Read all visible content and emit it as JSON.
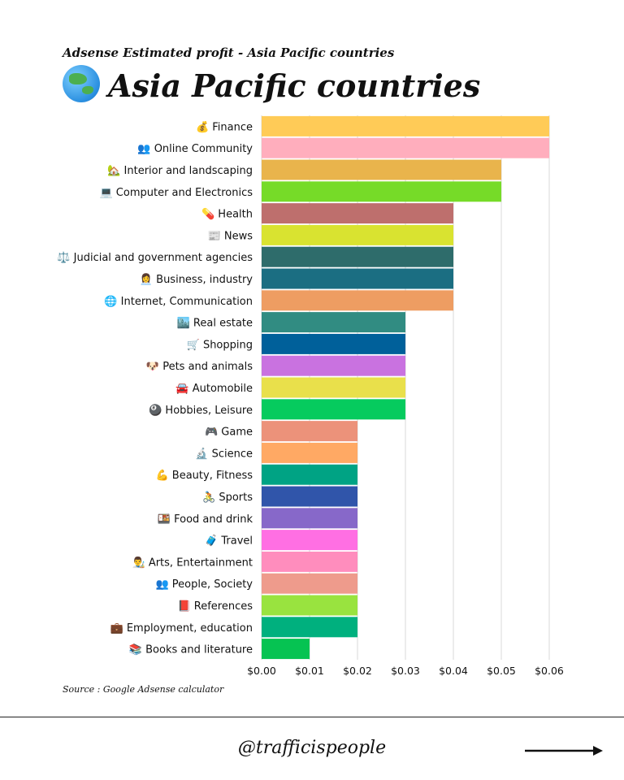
{
  "header": {
    "subtitle": "Adsense Estimated profit - Asia Pacific countries",
    "title": "Asia Pacific countries",
    "icon": "globe-asia-icon"
  },
  "footer": {
    "source": "Source : Google Adsense calculator",
    "handle": "@trafficispeople",
    "arrow_icon": "arrow-right-icon"
  },
  "chart_data": {
    "type": "bar",
    "orientation": "horizontal",
    "title": "Asia Pacific countries",
    "xlim": [
      0,
      0.06
    ],
    "x_ticks": [
      "$0.00",
      "$0.01",
      "$0.02",
      "$0.03",
      "$0.04",
      "$0.05",
      "$0.06"
    ],
    "grid": "vertical",
    "categories": [
      {
        "icon": "💰",
        "label": "Finance",
        "value": 0.06,
        "color": "#FFCB57"
      },
      {
        "icon": "👥",
        "label": "Online Community",
        "value": 0.06,
        "color": "#FFAEBD"
      },
      {
        "icon": "🏡",
        "label": "Interior and landscaping",
        "value": 0.05,
        "color": "#E9B44C"
      },
      {
        "icon": "💻",
        "label": "Computer and Electronics",
        "value": 0.05,
        "color": "#76DB28"
      },
      {
        "icon": "💊",
        "label": "Health",
        "value": 0.04,
        "color": "#BE6F6D"
      },
      {
        "icon": "📰",
        "label": "News",
        "value": 0.04,
        "color": "#D9E330"
      },
      {
        "icon": "⚖️",
        "label": "Judicial and government agencies",
        "value": 0.04,
        "color": "#2E6C6B"
      },
      {
        "icon": "👩‍💼",
        "label": "Business, industry",
        "value": 0.04,
        "color": "#1B6E82"
      },
      {
        "icon": "🌐",
        "label": "Internet, Communication",
        "value": 0.04,
        "color": "#EE9D62"
      },
      {
        "icon": "🏙️",
        "label": "Real estate",
        "value": 0.03,
        "color": "#318C82"
      },
      {
        "icon": "🛒",
        "label": "Shopping",
        "value": 0.03,
        "color": "#00609A"
      },
      {
        "icon": "🐶",
        "label": "Pets and animals",
        "value": 0.03,
        "color": "#C972E0"
      },
      {
        "icon": "🚘",
        "label": "Automobile",
        "value": 0.03,
        "color": "#E9E04B"
      },
      {
        "icon": "🎱",
        "label": "Hobbies, Leisure",
        "value": 0.03,
        "color": "#06CB5E"
      },
      {
        "icon": "🎮",
        "label": "Game",
        "value": 0.02,
        "color": "#EC927A"
      },
      {
        "icon": "🔬",
        "label": "Science",
        "value": 0.02,
        "color": "#FFA964"
      },
      {
        "icon": "💪",
        "label": "Beauty, Fitness",
        "value": 0.02,
        "color": "#00A384"
      },
      {
        "icon": "🚴",
        "label": "Sports",
        "value": 0.02,
        "color": "#3055AA"
      },
      {
        "icon": "🍱",
        "label": "Food and drink",
        "value": 0.02,
        "color": "#8768C9"
      },
      {
        "icon": "🧳",
        "label": "Travel",
        "value": 0.02,
        "color": "#FF6FE3"
      },
      {
        "icon": "👨‍🎨",
        "label": "Arts, Entertainment",
        "value": 0.02,
        "color": "#FF8DBD"
      },
      {
        "icon": "👥",
        "label": "People, Society",
        "value": 0.02,
        "color": "#EE9B8C"
      },
      {
        "icon": "📕",
        "label": "References",
        "value": 0.02,
        "color": "#99E33F"
      },
      {
        "icon": "💼",
        "label": "Employment, education",
        "value": 0.02,
        "color": "#00B07E"
      },
      {
        "icon": "📚",
        "label": "Books and literature",
        "value": 0.01,
        "color": "#06C352"
      }
    ]
  }
}
